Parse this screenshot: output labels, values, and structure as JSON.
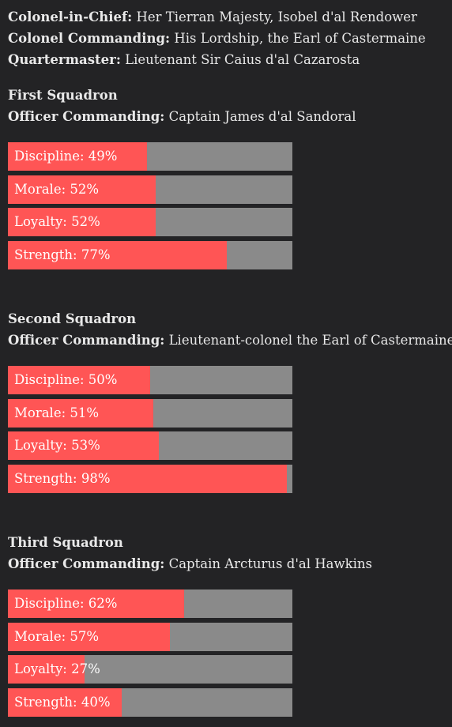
{
  "leadership": [
    {
      "label": "Colonel-in-Chief:",
      "value": "Her Tierran Majesty, Isobel d'al Rendower"
    },
    {
      "label": "Colonel Commanding:",
      "value": "His Lordship, the Earl of Castermaine"
    },
    {
      "label": "Quartermaster:",
      "value": "Lieutenant Sir Caius d'al Cazarosta"
    }
  ],
  "squadrons": [
    {
      "name": "First Squadron",
      "oc_label": "Officer Commanding:",
      "oc_value": "Captain James d'al Sandoral",
      "stats": [
        {
          "label": "Discipline: 49%",
          "value": 49
        },
        {
          "label": "Morale: 52%",
          "value": 52
        },
        {
          "label": "Loyalty: 52%",
          "value": 52
        },
        {
          "label": "Strength: 77%",
          "value": 77
        }
      ]
    },
    {
      "name": "Second Squadron",
      "oc_label": "Officer Commanding:",
      "oc_value": "Lieutenant-colonel the Earl of Castermaine",
      "stats": [
        {
          "label": "Discipline: 50%",
          "value": 50
        },
        {
          "label": "Morale: 51%",
          "value": 51
        },
        {
          "label": "Loyalty: 53%",
          "value": 53
        },
        {
          "label": "Strength: 98%",
          "value": 98
        }
      ]
    },
    {
      "name": "Third Squadron",
      "oc_label": "Officer Commanding:",
      "oc_value": "Captain Arcturus d'al Hawkins",
      "stats": [
        {
          "label": "Discipline: 62%",
          "value": 62
        },
        {
          "label": "Morale: 57%",
          "value": 57
        },
        {
          "label": "Loyalty: 27%",
          "value": 27
        },
        {
          "label": "Strength: 40%",
          "value": 40
        }
      ]
    }
  ],
  "colors": {
    "background": "#232325",
    "text": "#e9e9e9",
    "bar_fill": "#ff5555",
    "bar_track": "#8a8a8a"
  }
}
